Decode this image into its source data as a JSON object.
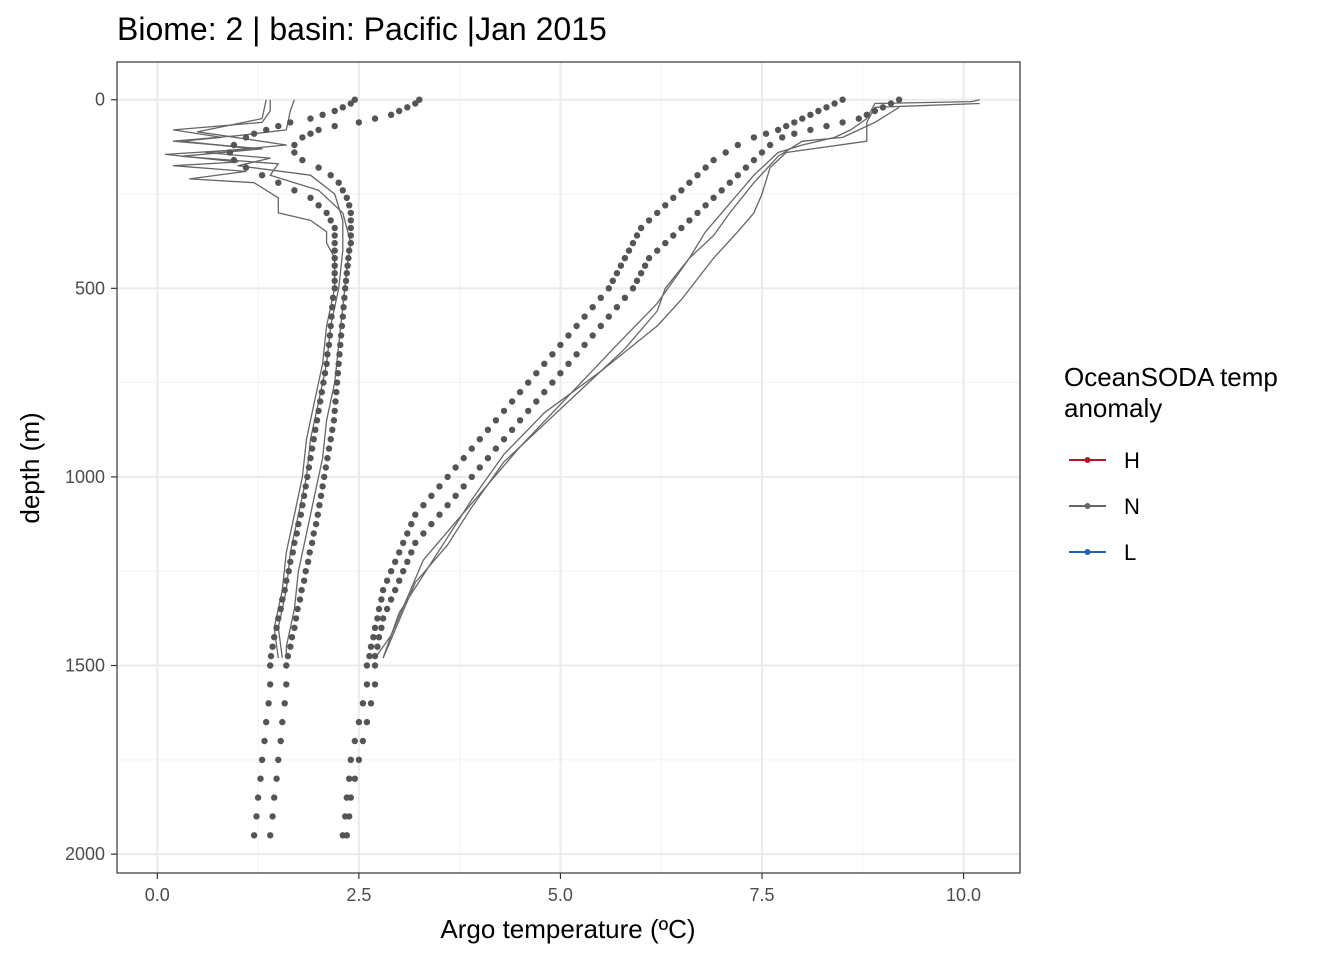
{
  "chart_data": {
    "type": "line",
    "title": "Biome: 2 | basin: Pacific  |Jan 2015",
    "xlabel": "Argo temperature (ºC)",
    "ylabel": "depth (m)",
    "xlim": [
      -0.5,
      10.7
    ],
    "ylim": [
      2050,
      -100
    ],
    "x_ticks": [
      0,
      2.5,
      5,
      7.5,
      10
    ],
    "x_tick_labels": [
      "0.0",
      "2.5",
      "5.0",
      "7.5",
      "10.0"
    ],
    "y_ticks": [
      0,
      500,
      1000,
      1500,
      2000
    ],
    "y_tick_labels": [
      "0",
      "500",
      "1000",
      "1500",
      "2000"
    ],
    "y_reversed": true,
    "grid": true,
    "legend": {
      "title_lines": [
        "OceanSODA temp",
        "anomaly"
      ],
      "placement": "right",
      "entries": [
        {
          "label": "H",
          "color": "#b2182b"
        },
        {
          "label": "N",
          "color": "#666666"
        },
        {
          "label": "L",
          "color": "#2166ac"
        }
      ]
    },
    "series_color": "#666666",
    "lines": [
      {
        "group": "N",
        "points": [
          [
            1.4,
            0
          ],
          [
            1.4,
            30
          ],
          [
            1.3,
            60
          ],
          [
            0.2,
            80
          ],
          [
            0.8,
            100
          ],
          [
            0.3,
            110
          ],
          [
            1.2,
            130
          ],
          [
            0.1,
            145
          ],
          [
            1.0,
            165
          ],
          [
            0.2,
            175
          ],
          [
            1.1,
            190
          ],
          [
            0.4,
            210
          ],
          [
            1.2,
            220
          ],
          [
            1.5,
            260
          ],
          [
            1.5,
            300
          ],
          [
            1.9,
            320
          ],
          [
            2.1,
            350
          ],
          [
            2.1,
            380
          ],
          [
            2.2,
            420
          ],
          [
            2.2,
            500
          ],
          [
            2.1,
            600
          ],
          [
            2.05,
            700
          ],
          [
            1.95,
            800
          ],
          [
            1.85,
            900
          ],
          [
            1.8,
            1000
          ],
          [
            1.7,
            1100
          ],
          [
            1.6,
            1200
          ],
          [
            1.55,
            1300
          ],
          [
            1.45,
            1400
          ],
          [
            1.5,
            1480
          ]
        ]
      },
      {
        "group": "N",
        "points": [
          [
            1.7,
            0
          ],
          [
            1.65,
            30
          ],
          [
            1.6,
            80
          ],
          [
            1.0,
            95
          ],
          [
            0.2,
            110
          ],
          [
            1.3,
            130
          ],
          [
            0.3,
            150
          ],
          [
            1.5,
            170
          ],
          [
            1.4,
            200
          ],
          [
            2.0,
            240
          ],
          [
            2.3,
            300
          ],
          [
            2.4,
            380
          ],
          [
            2.35,
            450
          ],
          [
            2.3,
            550
          ],
          [
            2.25,
            650
          ],
          [
            2.2,
            750
          ],
          [
            2.1,
            850
          ],
          [
            2.05,
            950
          ],
          [
            1.95,
            1050
          ],
          [
            1.85,
            1150
          ],
          [
            1.75,
            1250
          ],
          [
            1.7,
            1350
          ],
          [
            1.6,
            1450
          ],
          [
            1.6,
            1480
          ]
        ]
      },
      {
        "group": "N",
        "points": [
          [
            1.35,
            0
          ],
          [
            1.3,
            50
          ],
          [
            0.5,
            85
          ],
          [
            1.6,
            120
          ],
          [
            0.6,
            140
          ],
          [
            1.4,
            155
          ],
          [
            1.0,
            175
          ],
          [
            1.9,
            200
          ],
          [
            2.2,
            250
          ],
          [
            2.3,
            320
          ],
          [
            2.3,
            400
          ],
          [
            2.25,
            500
          ],
          [
            2.15,
            600
          ],
          [
            2.1,
            700
          ],
          [
            2.0,
            800
          ],
          [
            1.9,
            900
          ],
          [
            1.85,
            1000
          ],
          [
            1.75,
            1100
          ],
          [
            1.65,
            1200
          ],
          [
            1.6,
            1300
          ],
          [
            1.5,
            1400
          ],
          [
            1.55,
            1480
          ]
        ]
      },
      {
        "group": "N",
        "points": [
          [
            10.2,
            0
          ],
          [
            10.1,
            5
          ],
          [
            8.9,
            10
          ],
          [
            8.8,
            50
          ],
          [
            8.6,
            80
          ],
          [
            8.4,
            100
          ],
          [
            8.0,
            120
          ],
          [
            7.7,
            140
          ],
          [
            7.4,
            200
          ],
          [
            7.2,
            250
          ],
          [
            7.0,
            300
          ],
          [
            6.8,
            350
          ],
          [
            6.6,
            420
          ],
          [
            6.3,
            500
          ],
          [
            6.2,
            560
          ],
          [
            5.8,
            660
          ],
          [
            5.2,
            780
          ],
          [
            4.7,
            880
          ],
          [
            4.3,
            960
          ],
          [
            3.9,
            1080
          ],
          [
            3.6,
            1180
          ],
          [
            3.2,
            1280
          ],
          [
            3.0,
            1380
          ],
          [
            2.8,
            1480
          ]
        ]
      },
      {
        "group": "N",
        "points": [
          [
            10.2,
            10
          ],
          [
            8.9,
            20
          ],
          [
            8.8,
            60
          ],
          [
            8.8,
            110
          ],
          [
            7.8,
            140
          ],
          [
            7.6,
            180
          ],
          [
            7.5,
            250
          ],
          [
            7.4,
            300
          ],
          [
            7.2,
            350
          ],
          [
            6.9,
            420
          ],
          [
            6.5,
            530
          ],
          [
            6.2,
            600
          ],
          [
            5.5,
            720
          ],
          [
            4.8,
            830
          ],
          [
            4.3,
            940
          ],
          [
            3.9,
            1060
          ],
          [
            3.6,
            1160
          ],
          [
            3.3,
            1260
          ],
          [
            3.0,
            1360
          ],
          [
            2.8,
            1480
          ]
        ]
      },
      {
        "group": "N",
        "points": [
          [
            9.2,
            20
          ],
          [
            8.9,
            60
          ],
          [
            8.7,
            80
          ],
          [
            8.5,
            100
          ],
          [
            8.0,
            110
          ],
          [
            7.7,
            150
          ],
          [
            7.4,
            220
          ],
          [
            7.1,
            300
          ],
          [
            6.9,
            360
          ],
          [
            6.6,
            420
          ],
          [
            6.2,
            540
          ],
          [
            5.7,
            650
          ],
          [
            5.3,
            740
          ],
          [
            4.9,
            830
          ],
          [
            4.5,
            920
          ],
          [
            4.1,
            1020
          ],
          [
            3.7,
            1120
          ],
          [
            3.3,
            1220
          ],
          [
            3.1,
            1320
          ],
          [
            2.9,
            1420
          ],
          [
            2.7,
            1480
          ]
        ]
      }
    ],
    "points": [
      {
        "group": "N",
        "profile": 1,
        "depths": [
          0,
          10,
          20,
          30,
          40,
          50,
          60,
          70,
          80,
          90,
          100,
          120,
          140,
          160,
          180,
          200,
          220,
          240,
          260,
          280,
          300,
          320,
          340,
          360,
          380,
          400,
          420,
          440,
          460,
          480,
          500,
          525,
          550,
          575,
          600,
          625,
          650,
          675,
          700,
          725,
          750,
          775,
          800,
          825,
          850,
          875,
          900,
          925,
          950,
          975,
          1000,
          1025,
          1050,
          1075,
          1100,
          1125,
          1150,
          1175,
          1200,
          1225,
          1250,
          1275,
          1300,
          1325,
          1350,
          1375,
          1400,
          1425,
          1450,
          1475,
          1500,
          1550,
          1600,
          1650,
          1700,
          1750,
          1800,
          1850,
          1900,
          1950
        ],
        "temps": [
          2.45,
          2.4,
          2.3,
          2.2,
          2.05,
          1.9,
          1.65,
          1.5,
          1.35,
          1.2,
          1.1,
          0.95,
          0.9,
          0.95,
          1.1,
          1.3,
          1.5,
          1.7,
          1.9,
          2.0,
          2.1,
          2.15,
          2.2,
          2.2,
          2.2,
          2.2,
          2.2,
          2.2,
          2.2,
          2.2,
          2.2,
          2.18,
          2.17,
          2.16,
          2.15,
          2.14,
          2.13,
          2.11,
          2.1,
          2.08,
          2.06,
          2.04,
          2.02,
          2.0,
          1.98,
          1.96,
          1.94,
          1.92,
          1.9,
          1.88,
          1.86,
          1.84,
          1.82,
          1.8,
          1.78,
          1.75,
          1.73,
          1.7,
          1.68,
          1.65,
          1.63,
          1.6,
          1.58,
          1.55,
          1.53,
          1.5,
          1.48,
          1.45,
          1.43,
          1.41,
          1.4,
          1.4,
          1.38,
          1.35,
          1.33,
          1.3,
          1.28,
          1.25,
          1.23,
          1.2
        ]
      },
      {
        "group": "N",
        "profile": 2,
        "depths": [
          0,
          10,
          20,
          30,
          40,
          50,
          60,
          70,
          80,
          90,
          100,
          120,
          140,
          160,
          180,
          200,
          220,
          240,
          260,
          280,
          300,
          320,
          340,
          360,
          380,
          400,
          420,
          440,
          460,
          480,
          500,
          525,
          550,
          575,
          600,
          625,
          650,
          675,
          700,
          725,
          750,
          775,
          800,
          825,
          850,
          875,
          900,
          925,
          950,
          975,
          1000,
          1025,
          1050,
          1075,
          1100,
          1125,
          1150,
          1175,
          1200,
          1225,
          1250,
          1275,
          1300,
          1325,
          1350,
          1375,
          1400,
          1425,
          1450,
          1475,
          1500,
          1550,
          1600,
          1650,
          1700,
          1750,
          1800,
          1850,
          1900,
          1950
        ],
        "temps": [
          3.25,
          3.2,
          3.1,
          3.0,
          2.9,
          2.7,
          2.5,
          2.2,
          2.0,
          1.9,
          1.8,
          1.7,
          1.7,
          1.8,
          2.0,
          2.15,
          2.25,
          2.3,
          2.35,
          2.38,
          2.4,
          2.4,
          2.4,
          2.4,
          2.4,
          2.38,
          2.37,
          2.36,
          2.35,
          2.34,
          2.33,
          2.32,
          2.31,
          2.3,
          2.29,
          2.28,
          2.27,
          2.26,
          2.25,
          2.24,
          2.23,
          2.22,
          2.21,
          2.2,
          2.19,
          2.17,
          2.15,
          2.13,
          2.11,
          2.09,
          2.07,
          2.05,
          2.03,
          2.01,
          1.99,
          1.97,
          1.94,
          1.92,
          1.89,
          1.87,
          1.84,
          1.82,
          1.79,
          1.77,
          1.74,
          1.72,
          1.7,
          1.67,
          1.65,
          1.62,
          1.6,
          1.6,
          1.58,
          1.55,
          1.53,
          1.5,
          1.48,
          1.45,
          1.43,
          1.4
        ]
      },
      {
        "group": "N",
        "profile": 3,
        "depths": [
          0,
          10,
          20,
          30,
          40,
          50,
          60,
          70,
          80,
          90,
          100,
          120,
          140,
          160,
          180,
          200,
          220,
          240,
          260,
          280,
          300,
          320,
          340,
          360,
          380,
          400,
          420,
          440,
          460,
          480,
          500,
          525,
          550,
          575,
          600,
          625,
          650,
          675,
          700,
          725,
          750,
          775,
          800,
          825,
          850,
          875,
          900,
          925,
          950,
          975,
          1000,
          1025,
          1050,
          1075,
          1100,
          1125,
          1150,
          1175,
          1200,
          1225,
          1250,
          1275,
          1300,
          1325,
          1350,
          1375,
          1400,
          1425,
          1450,
          1475,
          1500,
          1550,
          1600,
          1650,
          1700,
          1750,
          1800,
          1850,
          1900,
          1950
        ],
        "temps": [
          8.5,
          8.4,
          8.3,
          8.2,
          8.1,
          8.0,
          7.9,
          7.8,
          7.7,
          7.55,
          7.4,
          7.2,
          7.05,
          6.9,
          6.8,
          6.7,
          6.6,
          6.5,
          6.4,
          6.3,
          6.2,
          6.1,
          6.0,
          5.95,
          5.9,
          5.85,
          5.8,
          5.75,
          5.7,
          5.65,
          5.6,
          5.5,
          5.4,
          5.3,
          5.2,
          5.1,
          5.0,
          4.9,
          4.8,
          4.7,
          4.6,
          4.5,
          4.4,
          4.3,
          4.2,
          4.1,
          4.0,
          3.9,
          3.8,
          3.7,
          3.6,
          3.5,
          3.4,
          3.3,
          3.2,
          3.15,
          3.1,
          3.05,
          3.0,
          2.95,
          2.9,
          2.85,
          2.8,
          2.78,
          2.75,
          2.73,
          2.7,
          2.68,
          2.65,
          2.63,
          2.6,
          2.6,
          2.55,
          2.5,
          2.45,
          2.4,
          2.38,
          2.35,
          2.33,
          2.3
        ]
      },
      {
        "group": "N",
        "profile": 4,
        "depths": [
          0,
          10,
          20,
          30,
          40,
          50,
          60,
          70,
          80,
          90,
          100,
          120,
          140,
          160,
          180,
          200,
          220,
          240,
          260,
          280,
          300,
          320,
          340,
          360,
          380,
          400,
          420,
          440,
          460,
          480,
          500,
          525,
          550,
          575,
          600,
          625,
          650,
          675,
          700,
          725,
          750,
          775,
          800,
          825,
          850,
          875,
          900,
          925,
          950,
          975,
          1000,
          1025,
          1050,
          1075,
          1100,
          1125,
          1150,
          1175,
          1200,
          1225,
          1250,
          1275,
          1300,
          1325,
          1350,
          1375,
          1400,
          1425,
          1450,
          1475,
          1500,
          1550,
          1600,
          1650,
          1700,
          1750,
          1800,
          1850,
          1900,
          1950
        ],
        "temps": [
          9.2,
          9.1,
          9.0,
          8.9,
          8.8,
          8.7,
          8.5,
          8.3,
          8.1,
          7.9,
          7.75,
          7.6,
          7.5,
          7.4,
          7.3,
          7.2,
          7.1,
          7.0,
          6.9,
          6.8,
          6.7,
          6.6,
          6.5,
          6.4,
          6.3,
          6.2,
          6.1,
          6.05,
          6.0,
          5.95,
          5.9,
          5.8,
          5.7,
          5.6,
          5.5,
          5.4,
          5.3,
          5.2,
          5.1,
          5.0,
          4.9,
          4.8,
          4.7,
          4.6,
          4.5,
          4.4,
          4.3,
          4.2,
          4.1,
          4.0,
          3.9,
          3.8,
          3.7,
          3.6,
          3.5,
          3.4,
          3.3,
          3.2,
          3.15,
          3.1,
          3.05,
          3.0,
          2.95,
          2.9,
          2.85,
          2.8,
          2.78,
          2.75,
          2.73,
          2.7,
          2.7,
          2.7,
          2.65,
          2.6,
          2.55,
          2.5,
          2.45,
          2.4,
          2.38,
          2.35
        ]
      }
    ]
  }
}
